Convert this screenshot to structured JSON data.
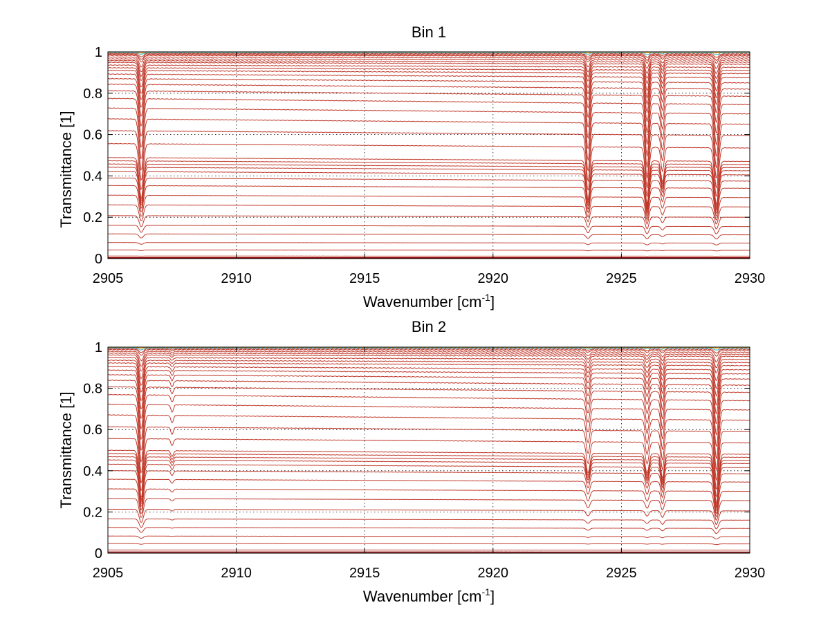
{
  "chart_data": [
    {
      "type": "line",
      "title": "Bin 1",
      "xlabel": "Wavenumber [cm",
      "xlabel_sup": "-1",
      "xlabel_tail": "]",
      "ylabel": "Transmittance [1]",
      "xlim": [
        2905,
        2930
      ],
      "ylim": [
        0,
        1
      ],
      "xticks": [
        2905,
        2910,
        2915,
        2920,
        2925,
        2930
      ],
      "yticks": [
        0,
        0.2,
        0.4,
        0.6,
        0.8,
        1
      ],
      "xtick_labels": [
        "2905",
        "2910",
        "2915",
        "2920",
        "2925",
        "2930"
      ],
      "ytick_labels": [
        "0",
        "0.2",
        "0.4",
        "0.6",
        "0.8",
        "1"
      ],
      "grid": true,
      "colors": {
        "trace": "#c0392b",
        "near_unity": [
          "#ff7f0e",
          "#e8a000",
          "#3cb0c8",
          "#d95319"
        ],
        "floor": "#8b0000"
      },
      "absorption_lines": [
        {
          "center": 2906.3,
          "width": 0.08,
          "rel_depth": 0.42
        },
        {
          "center": 2923.7,
          "width": 0.07,
          "rel_depth": 0.4
        },
        {
          "center": 2926.0,
          "width": 0.07,
          "rel_depth": 0.45
        },
        {
          "center": 2926.6,
          "width": 0.06,
          "rel_depth": 0.22
        },
        {
          "center": 2928.7,
          "width": 0.08,
          "rel_depth": 0.45
        }
      ],
      "baselines": [
        1.0,
        0.998,
        0.995,
        0.99,
        0.985,
        0.98,
        0.97,
        0.96,
        0.95,
        0.94,
        0.925,
        0.91,
        0.895,
        0.875,
        0.85,
        0.82,
        0.785,
        0.745,
        0.7,
        0.65,
        0.595,
        0.535,
        0.47,
        0.455,
        0.44,
        0.425,
        0.405,
        0.375,
        0.34,
        0.295,
        0.25,
        0.2,
        0.155,
        0.115,
        0.075,
        0.04,
        0.012,
        0.005,
        0.002
      ],
      "drift": 0.04
    },
    {
      "type": "line",
      "title": "Bin 2",
      "xlabel": "Wavenumber [cm",
      "xlabel_sup": "-1",
      "xlabel_tail": "]",
      "ylabel": "Transmittance [1]",
      "xlim": [
        2905,
        2930
      ],
      "ylim": [
        0,
        1
      ],
      "xticks": [
        2905,
        2910,
        2915,
        2920,
        2925,
        2930
      ],
      "yticks": [
        0,
        0.2,
        0.4,
        0.6,
        0.8,
        1
      ],
      "xtick_labels": [
        "2905",
        "2910",
        "2915",
        "2920",
        "2925",
        "2930"
      ],
      "ytick_labels": [
        "0",
        "0.2",
        "0.4",
        "0.6",
        "0.8",
        "1"
      ],
      "grid": true,
      "colors": {
        "trace": "#c0392b",
        "near_unity": [
          "#ff7f0e",
          "#e8a000",
          "#3cb0c8",
          "#d95319"
        ],
        "floor": "#8b0000"
      },
      "absorption_lines": [
        {
          "center": 2906.3,
          "width": 0.08,
          "rel_depth": 0.48
        },
        {
          "center": 2907.5,
          "width": 0.05,
          "rel_depth": 0.06
        },
        {
          "center": 2923.7,
          "width": 0.07,
          "rel_depth": 0.2
        },
        {
          "center": 2926.0,
          "width": 0.07,
          "rel_depth": 0.2
        },
        {
          "center": 2926.6,
          "width": 0.06,
          "rel_depth": 0.25
        },
        {
          "center": 2928.7,
          "width": 0.08,
          "rel_depth": 0.5
        }
      ],
      "baselines": [
        1.0,
        0.998,
        0.995,
        0.99,
        0.985,
        0.975,
        0.965,
        0.955,
        0.94,
        0.925,
        0.91,
        0.89,
        0.87,
        0.845,
        0.815,
        0.78,
        0.74,
        0.695,
        0.645,
        0.59,
        0.535,
        0.48,
        0.465,
        0.45,
        0.435,
        0.415,
        0.385,
        0.345,
        0.3,
        0.255,
        0.205,
        0.16,
        0.12,
        0.08,
        0.045,
        0.015,
        0.006,
        0.002
      ],
      "drift": 0.04
    }
  ]
}
